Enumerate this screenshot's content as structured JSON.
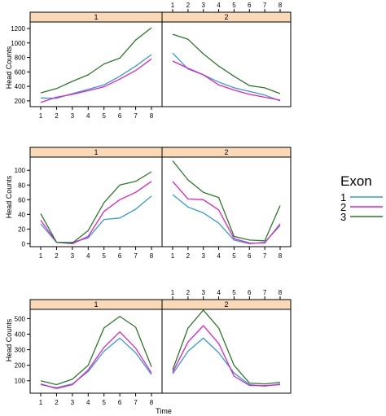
{
  "chart_data": {
    "type": "line",
    "legend": {
      "title": "Exon",
      "placement": "right",
      "entries": [
        {
          "label": "1",
          "color": "#3399dd"
        },
        {
          "label": "2",
          "color": "#e020c8"
        },
        {
          "label": "3",
          "color": "#2a7a2a"
        }
      ]
    },
    "xlabel": "Time",
    "ylabel": "Head Counts",
    "x": [
      1,
      2,
      3,
      4,
      5,
      6,
      7,
      8
    ],
    "xtick_labels": [
      "1",
      "2",
      "3",
      "4",
      "5",
      "6",
      "7",
      "8"
    ],
    "rows": [
      {
        "ylim": [
          120,
          1290
        ],
        "yticks": [
          200,
          400,
          600,
          800,
          1000,
          1200
        ],
        "panels": [
          {
            "strip": "1",
            "series": [
              {
                "exon": "1",
                "values": [
                  240,
                  235,
                  300,
                  360,
                  420,
                  540,
                  680,
                  840
                ]
              },
              {
                "exon": "2",
                "values": [
                  180,
                  250,
                  290,
                  340,
                  395,
                  500,
                  620,
                  780
                ]
              },
              {
                "exon": "3",
                "values": [
                  310,
                  370,
                  470,
                  560,
                  710,
                  790,
                  1040,
                  1210
                ]
              }
            ]
          },
          {
            "strip": "2",
            "series": [
              {
                "exon": "1",
                "values": [
                  860,
                  640,
                  560,
                  460,
                  380,
                  330,
                  280,
                  200
                ]
              },
              {
                "exon": "2",
                "values": [
                  750,
                  650,
                  560,
                  420,
                  350,
                  290,
                  250,
                  210
                ]
              },
              {
                "exon": "3",
                "values": [
                  1120,
                  1050,
                  850,
                  680,
                  540,
                  410,
                  380,
                  300
                ]
              }
            ]
          }
        ]
      },
      {
        "ylim": [
          -4,
          118
        ],
        "yticks": [
          0,
          20,
          40,
          60,
          80,
          100
        ],
        "panels": [
          {
            "strip": "1",
            "series": [
              {
                "exon": "1",
                "values": [
                  27,
                  2,
                  2,
                  8,
                  33,
                  35,
                  47,
                  65
                ]
              },
              {
                "exon": "2",
                "values": [
                  32,
                  2,
                  0,
                  10,
                  44,
                  60,
                  70,
                  85
                ]
              },
              {
                "exon": "3",
                "values": [
                  41,
                  2,
                  1,
                  18,
                  56,
                  80,
                  85,
                  98
                ]
              }
            ]
          },
          {
            "strip": "2",
            "series": [
              {
                "exon": "1",
                "values": [
                  67,
                  50,
                  42,
                  28,
                  5,
                  0,
                  2,
                  25
                ]
              },
              {
                "exon": "2",
                "values": [
                  85,
                  61,
                  60,
                  46,
                  7,
                  1,
                  1,
                  27
                ]
              },
              {
                "exon": "3",
                "values": [
                  113,
                  87,
                  70,
                  63,
                  10,
                  5,
                  4,
                  52
                ]
              }
            ]
          }
        ]
      },
      {
        "ylim": [
          20,
          560
        ],
        "yticks": [
          100,
          200,
          300,
          400,
          500
        ],
        "panels": [
          {
            "strip": "1",
            "series": [
              {
                "exon": "1",
                "values": [
                  75,
                  55,
                  80,
                  160,
                  290,
                  375,
                  280,
                  140
                ]
              },
              {
                "exon": "2",
                "values": [
                  80,
                  50,
                  75,
                  170,
                  315,
                  415,
                  310,
                  150
                ]
              },
              {
                "exon": "3",
                "values": [
                  100,
                  75,
                  110,
                  200,
                  440,
                  515,
                  445,
                  190
                ]
              }
            ]
          },
          {
            "strip": "2",
            "series": [
              {
                "exon": "1",
                "values": [
                  145,
                  290,
                  375,
                  280,
                  150,
                  75,
                  65,
                  80
                ]
              },
              {
                "exon": "2",
                "values": [
                  155,
                  350,
                  455,
                  340,
                  130,
                  70,
                  68,
                  75
                ]
              },
              {
                "exon": "3",
                "values": [
                  170,
                  440,
                  555,
                  440,
                  200,
                  85,
                  80,
                  90
                ]
              }
            ]
          }
        ]
      }
    ]
  }
}
